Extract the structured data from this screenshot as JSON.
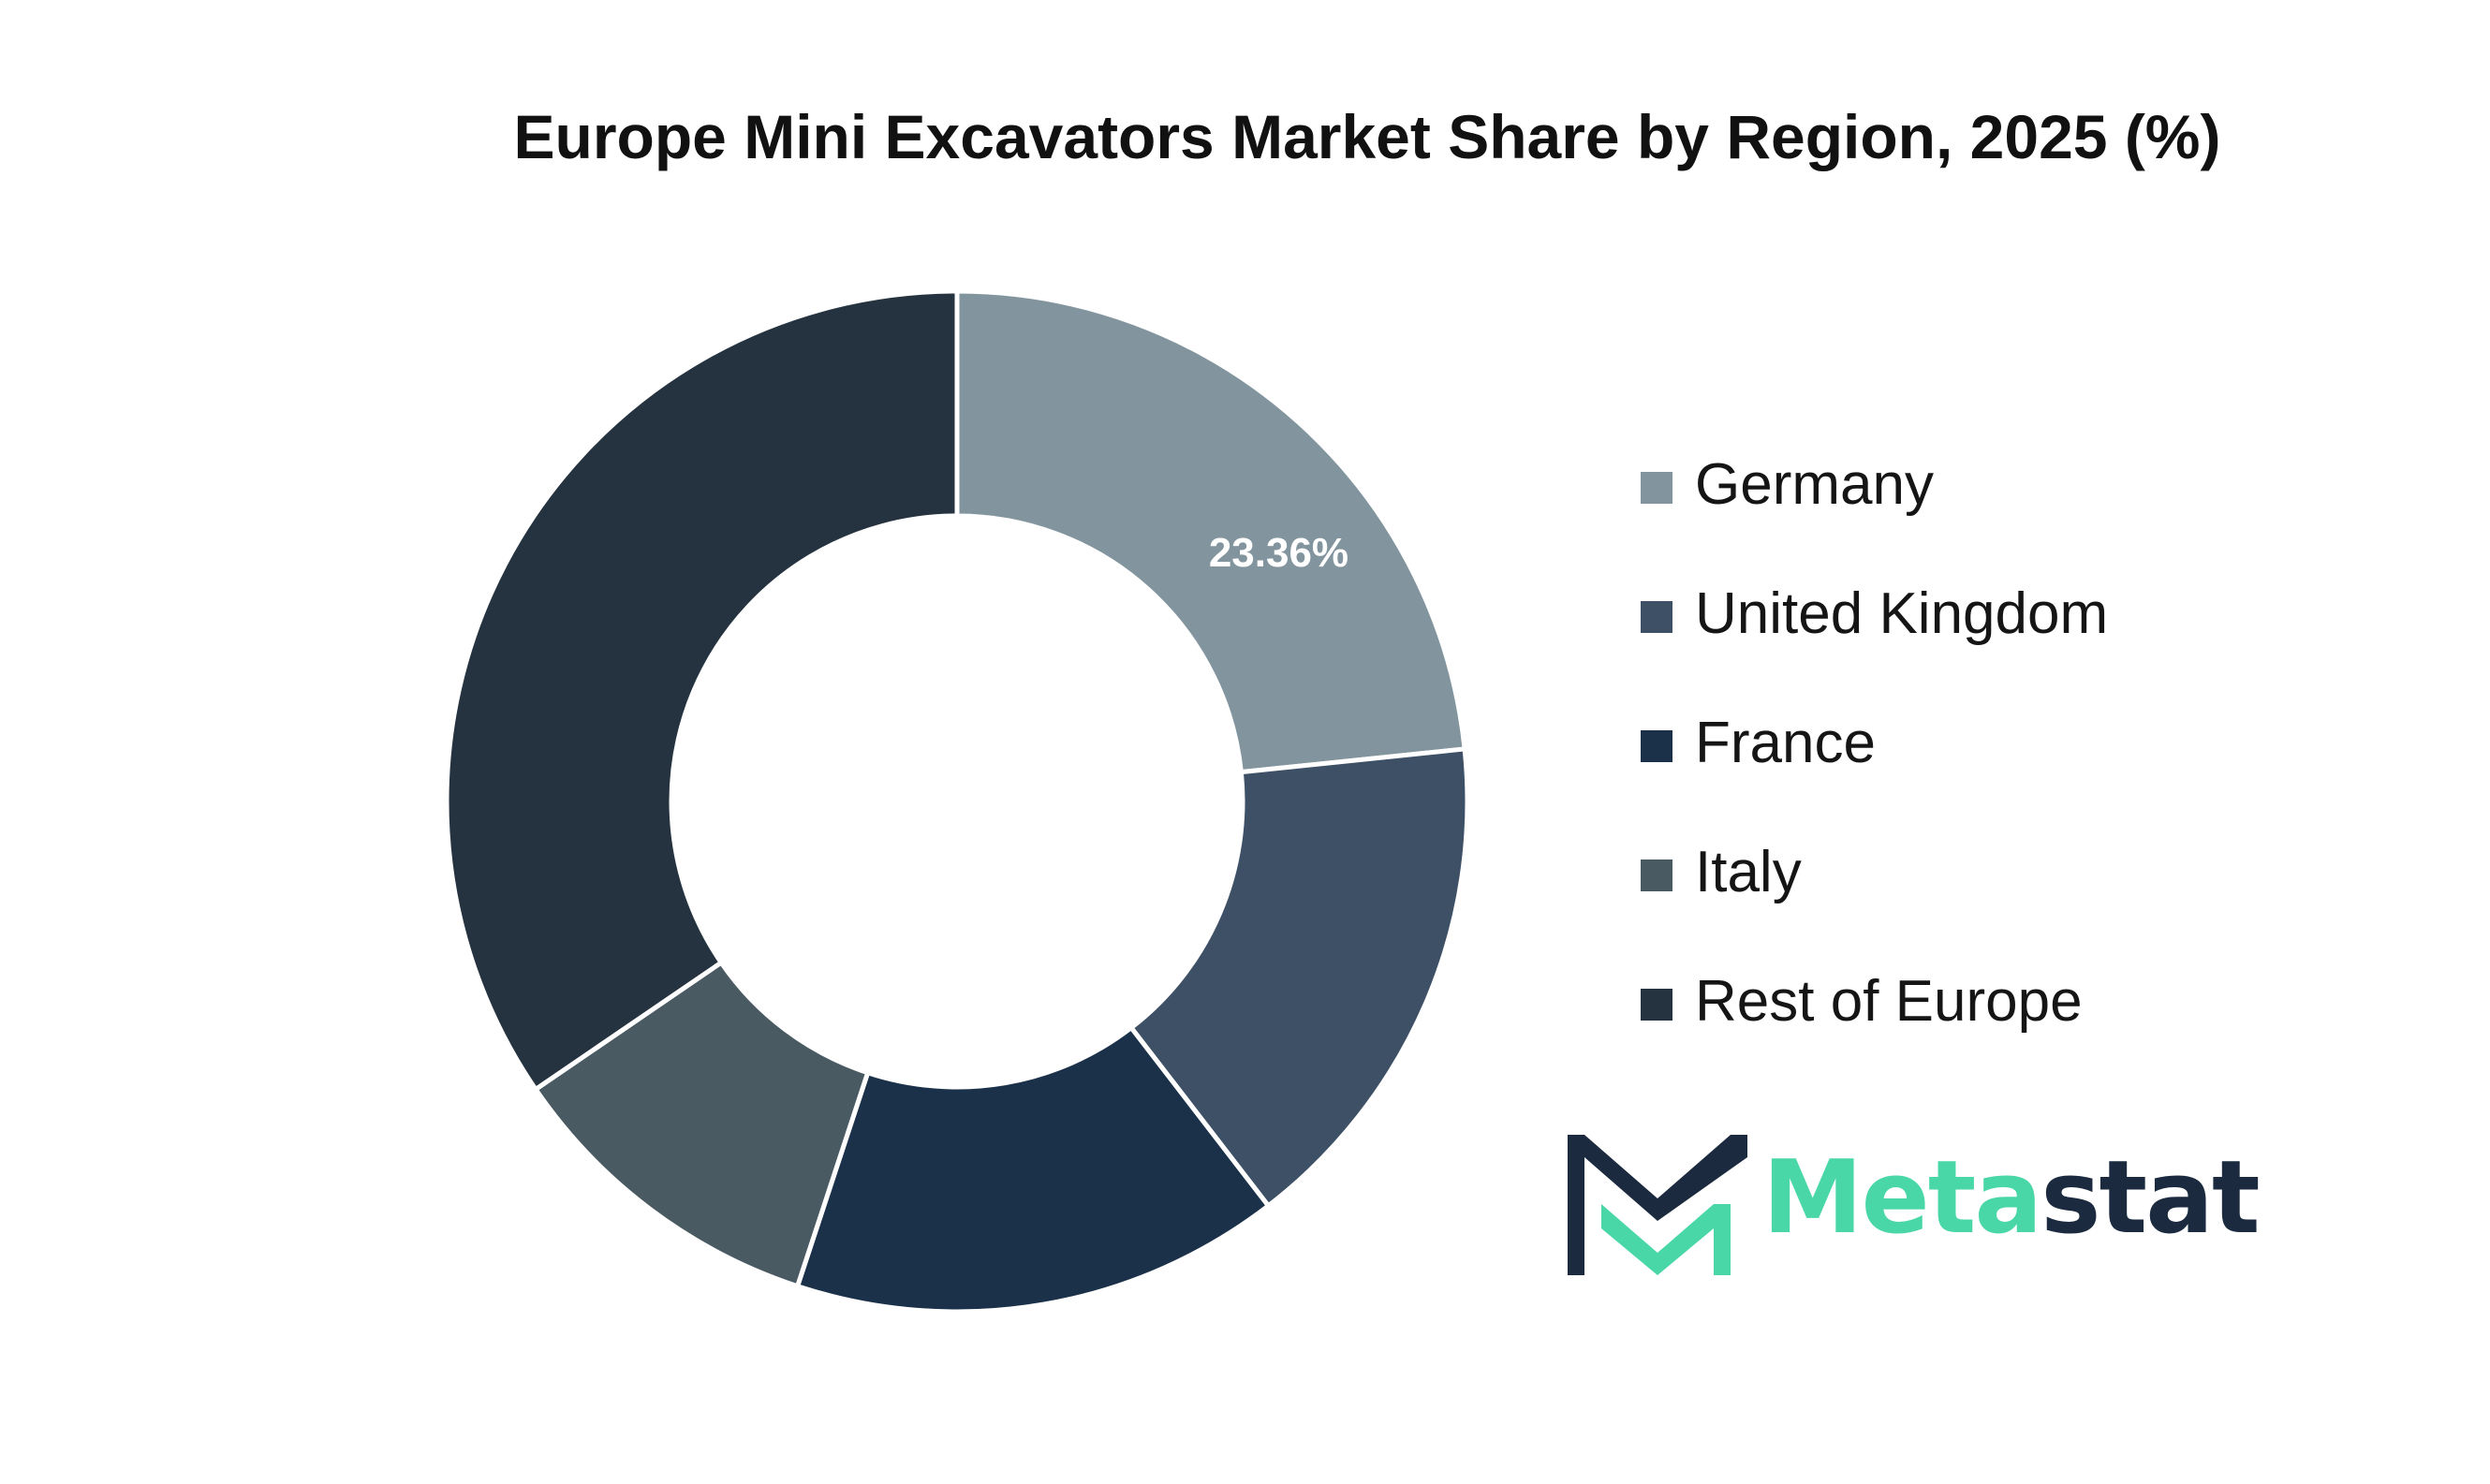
{
  "chart_data": {
    "type": "pie",
    "title": "Europe Mini Excavators Market Share by Region, 2025 (%)",
    "donut": true,
    "categories": [
      "Germany",
      "United Kingdom",
      "France",
      "Italy",
      "Rest of Europe"
    ],
    "values": [
      23.36,
      16.2,
      15.5,
      10.4,
      34.54
    ],
    "colors": [
      "#82959f",
      "#3d5066",
      "#1b3049",
      "#4a5a63",
      "#25323f"
    ],
    "data_labels": [
      "23.36%",
      "",
      "",
      "",
      ""
    ],
    "legend_position": "right"
  },
  "logo": {
    "text_part1": "Meta",
    "text_part2": "stat",
    "colors": {
      "accent": "#4ad7a8",
      "dark": "#1b2a3e"
    }
  }
}
